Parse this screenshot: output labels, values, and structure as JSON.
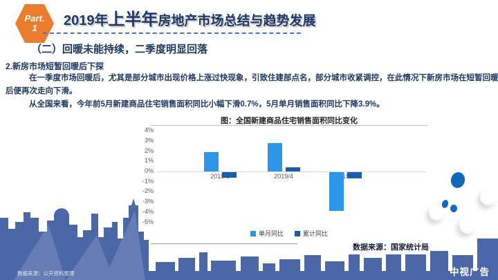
{
  "header": {
    "part_label": "Part.",
    "part_number": "1",
    "title_parts": [
      "2019年",
      "上半年",
      "房地产市场总结与趋势发展"
    ]
  },
  "subtitle": "（二）回暖未能持续，二季度明显回落",
  "section": {
    "heading": "2.新房市场短暂回暖后下探",
    "para1_line1": "在一季度市场回暖后，尤其是部分城市出现价格上涨过快现象，引致住建部点名，部分城市收紧调控，在此情况下新房市场在短暂回暖",
    "para1_line2": "后便再次走向下滑。",
    "para2": "从全国来看，今年前5月新建商品住宅销售面积同比小幅下滑0.7%，5月单月销售面积同比下降3.9%。"
  },
  "chart_data": {
    "type": "bar",
    "title": "图：全国新建商品住宅销售面积同比变化",
    "categories": [
      "2019/3",
      "2019/4",
      "2019/5"
    ],
    "series": [
      {
        "name": "单月同比",
        "color": "#2E96E8",
        "values": [
          1.9,
          2.8,
          -3.9
        ]
      },
      {
        "name": "累计同比",
        "color": "#1A5DAD",
        "values": [
          -0.6,
          0.4,
          -0.7
        ]
      }
    ],
    "y_ticks": [
      "4%",
      "3%",
      "2%",
      "1%",
      "0%",
      "-1%",
      "-2%",
      "-3%",
      "-4%",
      "-5%"
    ],
    "ylim": [
      -5,
      4
    ],
    "grid": false,
    "legend_position": "bottom",
    "source": "数据来源：国家统计局"
  },
  "footer": {
    "source_note": "数据来源：公开资料整理",
    "watermark": "中视广告"
  },
  "colors": {
    "accent_orange": "#EC7D2D",
    "navy_text": "#1F3864",
    "bar_light": "#2E96E8",
    "bar_dark": "#1A5DAD",
    "skyline_blue": "#4B67A8"
  }
}
